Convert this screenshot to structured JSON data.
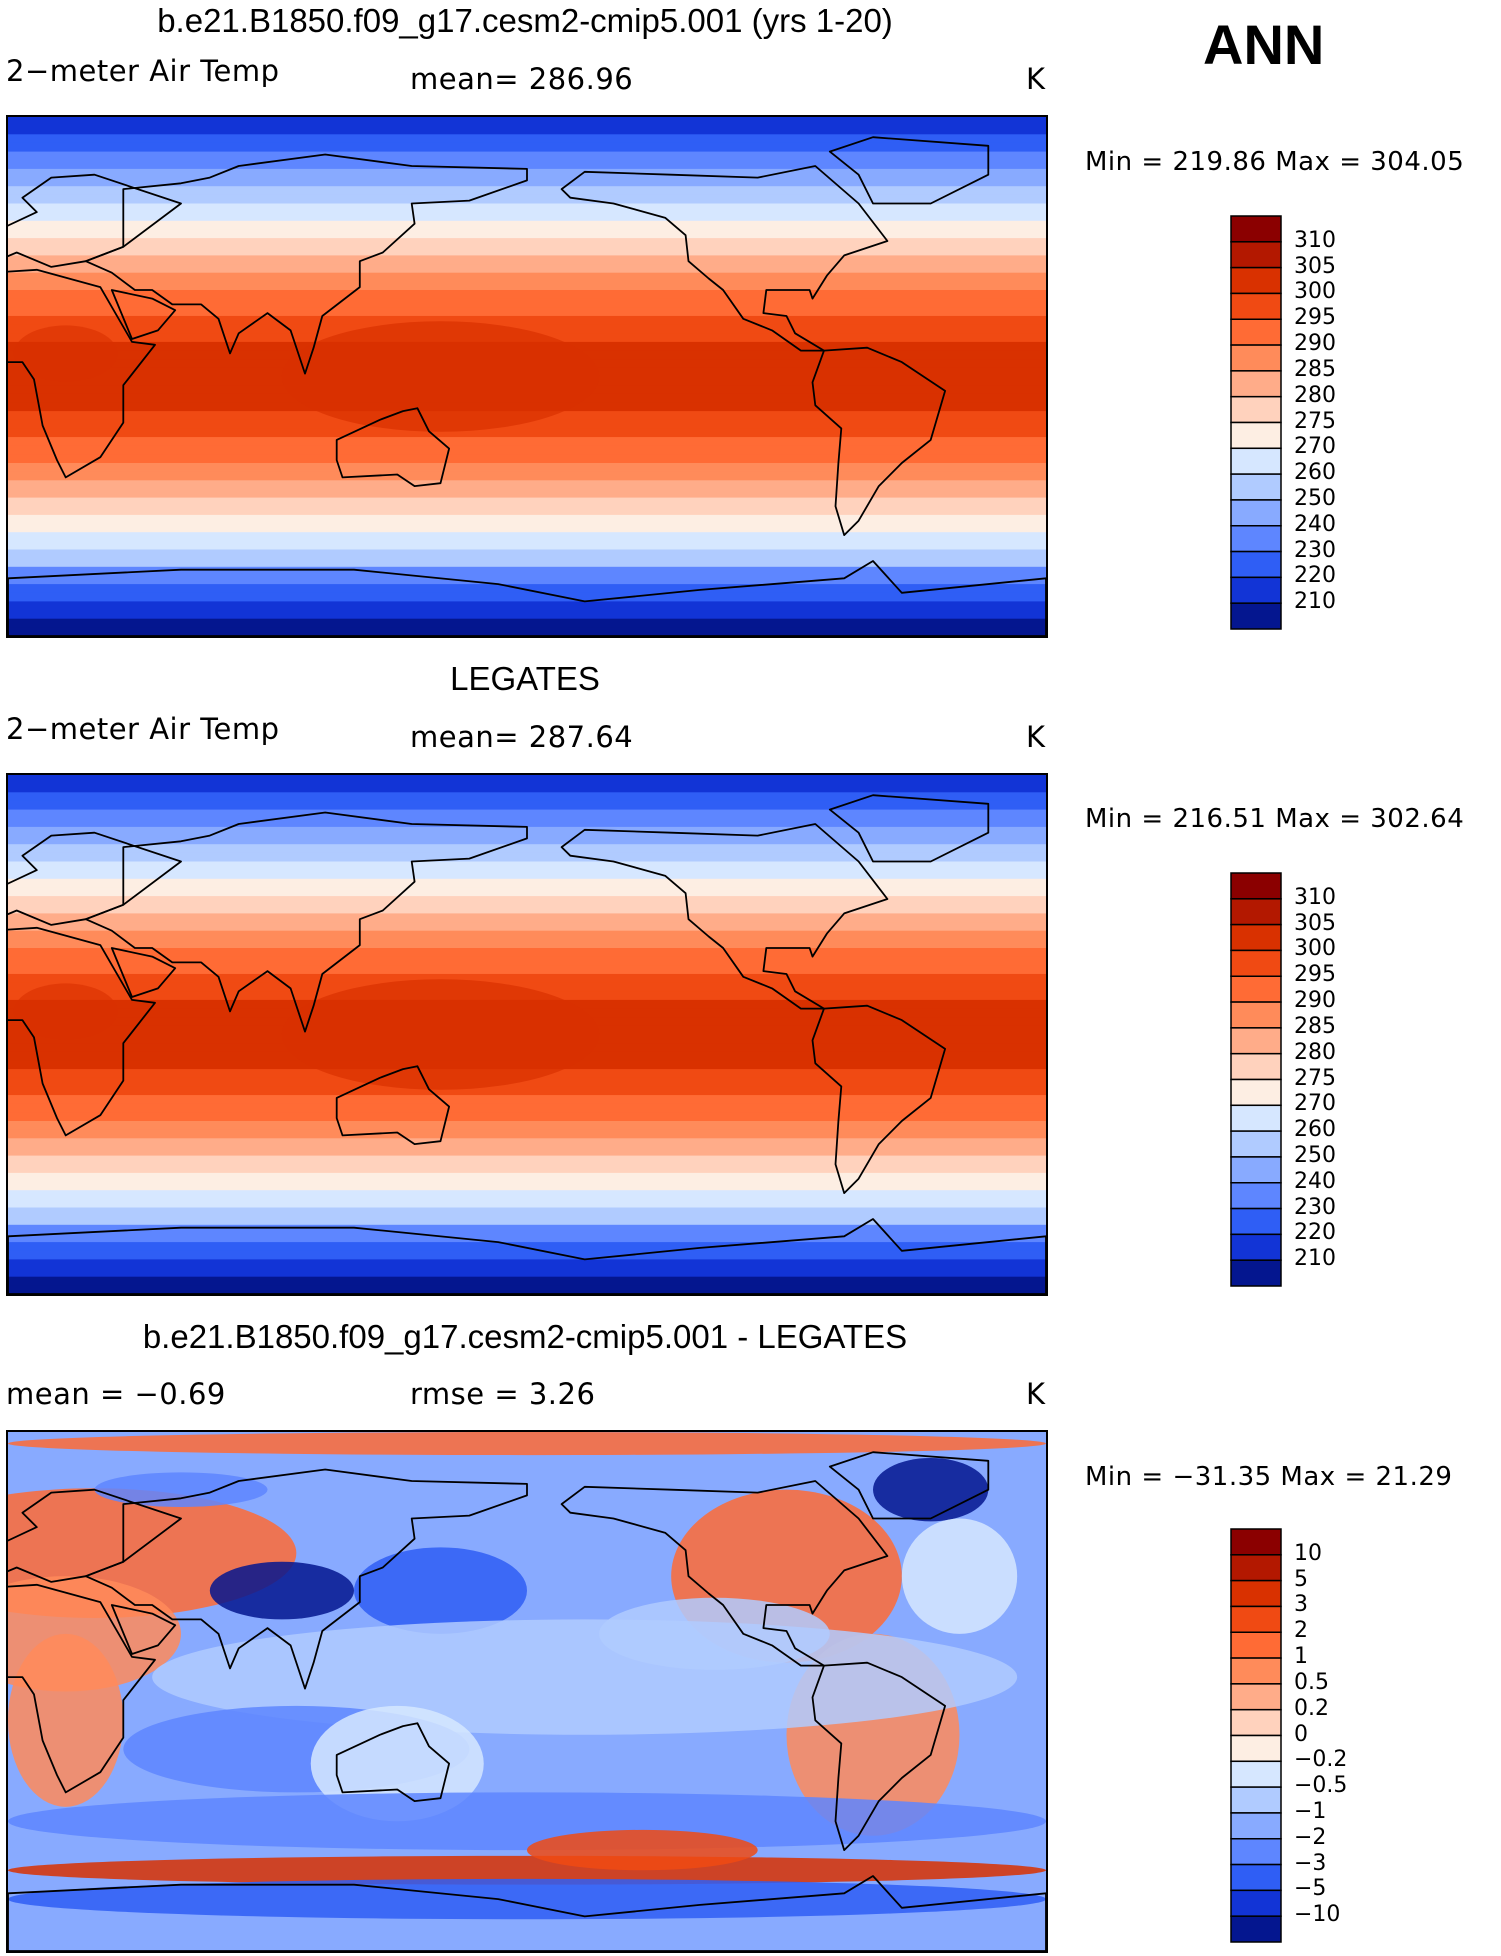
{
  "header": {
    "season": "ANN"
  },
  "panels": [
    {
      "title": "b.e21.B1850.f09_g17.cesm2-cmip5.001 (yrs 1-20)",
      "left": "2−meter Air Temp",
      "center": "mean=  286.96",
      "unit": "K",
      "minmax": "Min  =  219.86  Max  =  304.05",
      "kind": "abs",
      "colorbar": {
        "labels": [
          "310",
          "305",
          "300",
          "295",
          "290",
          "285",
          "280",
          "275",
          "270",
          "260",
          "250",
          "240",
          "230",
          "220",
          "210"
        ],
        "colors": [
          "#8b0000",
          "#b31800",
          "#d93100",
          "#f04a13",
          "#ff6b35",
          "#ff8b5a",
          "#ffac89",
          "#ffd2bd",
          "#fdeee3",
          "#d6e7ff",
          "#b0cbff",
          "#88aaff",
          "#5e86ff",
          "#2f5ef5",
          "#1234d6",
          "#04168f"
        ]
      }
    },
    {
      "title": "LEGATES",
      "left": "2−meter Air Temp",
      "center": "mean=  287.64",
      "unit": "K",
      "minmax": "Min  =  216.51  Max  =  302.64",
      "kind": "abs",
      "colorbar": {
        "labels": [
          "310",
          "305",
          "300",
          "295",
          "290",
          "285",
          "280",
          "275",
          "270",
          "260",
          "250",
          "240",
          "230",
          "220",
          "210"
        ],
        "colors": [
          "#8b0000",
          "#b31800",
          "#d93100",
          "#f04a13",
          "#ff6b35",
          "#ff8b5a",
          "#ffac89",
          "#ffd2bd",
          "#fdeee3",
          "#d6e7ff",
          "#b0cbff",
          "#88aaff",
          "#5e86ff",
          "#2f5ef5",
          "#1234d6",
          "#04168f"
        ]
      }
    },
    {
      "title": "b.e21.B1850.f09_g17.cesm2-cmip5.001 - LEGATES",
      "left": "mean  =    −0.69",
      "center": "rmse  =     3.26",
      "unit": "K",
      "minmax": "Min  = −31.35  Max  =    21.29",
      "kind": "diff",
      "colorbar": {
        "labels": [
          "10",
          "5",
          "3",
          "2",
          "1",
          "0.5",
          "0.2",
          "0",
          "−0.2",
          "−0.5",
          "−1",
          "−2",
          "−3",
          "−5",
          "−10"
        ],
        "colors": [
          "#8b0000",
          "#b31800",
          "#d93100",
          "#f04a13",
          "#ff6b35",
          "#ff8b5a",
          "#ffac89",
          "#ffd2bd",
          "#fdeee3",
          "#d6e7ff",
          "#b0cbff",
          "#88aaff",
          "#5e86ff",
          "#2f5ef5",
          "#1234d6",
          "#04168f"
        ]
      }
    }
  ]
}
